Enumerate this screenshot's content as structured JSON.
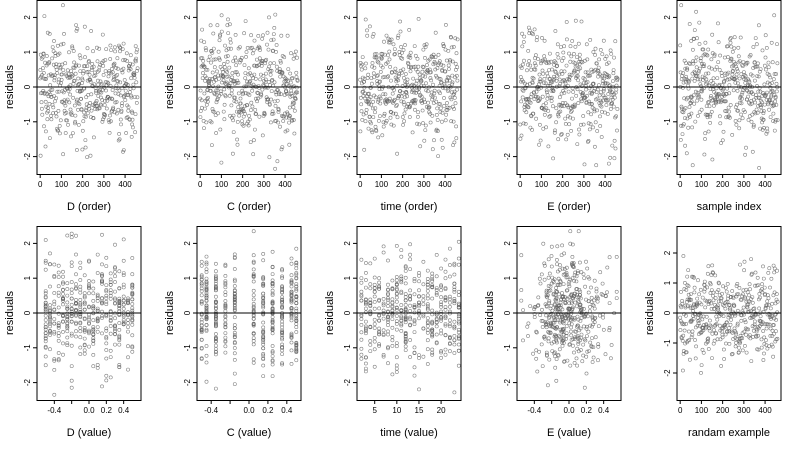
{
  "chart_data": [
    {
      "type": "scatter",
      "xlabel": "D (order)",
      "ylabel": "residuals",
      "xlim": [
        -15,
        475
      ],
      "ylim": [
        -2.5,
        2.5
      ],
      "xticks": [
        0,
        100,
        200,
        300,
        400
      ],
      "yticks": [
        -2,
        -1,
        0,
        1,
        2
      ],
      "reference_line_y": 0,
      "x_kind": "index",
      "n_points": 460,
      "points": []
    },
    {
      "type": "scatter",
      "xlabel": "C (order)",
      "ylabel": "residuals",
      "xlim": [
        -15,
        475
      ],
      "ylim": [
        -2.5,
        2.5
      ],
      "xticks": [
        0,
        100,
        200,
        300,
        400
      ],
      "yticks": [
        -2,
        -1,
        0,
        1,
        2
      ],
      "reference_line_y": 0,
      "x_kind": "index",
      "n_points": 460,
      "points": []
    },
    {
      "type": "scatter",
      "xlabel": "time (order)",
      "ylabel": "residuals",
      "xlim": [
        -15,
        475
      ],
      "ylim": [
        -2.5,
        2.5
      ],
      "xticks": [
        0,
        100,
        200,
        300,
        400
      ],
      "yticks": [
        -2,
        -1,
        0,
        1,
        2
      ],
      "reference_line_y": 0,
      "x_kind": "index",
      "n_points": 460,
      "points": []
    },
    {
      "type": "scatter",
      "xlabel": "E (order)",
      "ylabel": "residuals",
      "xlim": [
        -15,
        475
      ],
      "ylim": [
        -2.5,
        2.5
      ],
      "xticks": [
        0,
        100,
        200,
        300,
        400
      ],
      "yticks": [
        -2,
        -1,
        0,
        1,
        2
      ],
      "reference_line_y": 0,
      "x_kind": "index",
      "n_points": 460,
      "points": []
    },
    {
      "type": "scatter",
      "xlabel": "sample index",
      "ylabel": "residuals",
      "xlim": [
        -15,
        475
      ],
      "ylim": [
        -2.5,
        2.5
      ],
      "xticks": [
        0,
        100,
        200,
        300,
        400
      ],
      "yticks": [
        -2,
        -1,
        0,
        1,
        2
      ],
      "reference_line_y": 0,
      "x_kind": "index",
      "n_points": 460,
      "points": []
    },
    {
      "type": "scatter",
      "xlabel": "D (value)",
      "ylabel": "residuals",
      "xlim": [
        -0.6,
        0.6
      ],
      "ylim": [
        -2.5,
        2.5
      ],
      "xticks": [
        -0.4,
        -0.2,
        0,
        0.2,
        0.4
      ],
      "xtick_labels": [
        "-0.4",
        "",
        "0.0",
        "0.2",
        "0.4"
      ],
      "yticks": [
        -2,
        -1,
        0,
        1,
        2
      ],
      "reference_line_y": 0,
      "x_kind": "value",
      "x_levels": [
        -0.5,
        -0.45,
        -0.4,
        -0.35,
        -0.3,
        -0.25,
        -0.2,
        -0.15,
        -0.1,
        -0.05,
        0.0,
        0.05,
        0.1,
        0.15,
        0.2,
        0.25,
        0.3,
        0.35,
        0.4,
        0.45,
        0.5
      ],
      "n_points": 460,
      "points": []
    },
    {
      "type": "scatter",
      "xlabel": "C (value)",
      "ylabel": "residuals",
      "xlim": [
        -0.55,
        0.55
      ],
      "ylim": [
        -2.5,
        2.5
      ],
      "xticks": [
        -0.4,
        -0.2,
        0,
        0.2,
        0.4
      ],
      "xtick_labels": [
        "-0.4",
        "",
        "0.0",
        "0.2",
        "0.4"
      ],
      "yticks": [
        -2,
        -1,
        0,
        1,
        2
      ],
      "reference_line_y": 0,
      "x_kind": "value",
      "x_levels": [
        -0.5,
        -0.45,
        -0.35,
        -0.25,
        -0.15,
        0.05,
        0.15,
        0.25,
        0.35,
        0.45,
        0.5
      ],
      "n_points": 460,
      "points": []
    },
    {
      "type": "scatter",
      "xlabel": "time (value)",
      "ylabel": "residuals",
      "xlim": [
        1,
        24.5
      ],
      "ylim": [
        -2.5,
        2.5
      ],
      "xticks": [
        5,
        10,
        15,
        20
      ],
      "yticks": [
        -2,
        -1,
        0,
        1,
        2
      ],
      "reference_line_y": 0,
      "x_kind": "value",
      "x_levels": [
        2,
        3,
        4,
        5,
        6,
        7,
        8,
        9,
        10,
        11,
        12,
        13,
        14,
        15,
        16,
        17,
        18,
        19,
        20,
        21,
        22,
        23,
        24
      ],
      "n_points": 460,
      "points": []
    },
    {
      "type": "scatter",
      "xlabel": "E (value)",
      "ylabel": "residuals",
      "xlim": [
        -0.6,
        0.6
      ],
      "ylim": [
        -2.5,
        2.5
      ],
      "xticks": [
        -0.4,
        -0.2,
        0,
        0.2,
        0.4
      ],
      "xtick_labels": [
        "-0.4",
        "",
        "0.0",
        "0.2",
        "0.4"
      ],
      "yticks": [
        -2,
        -1,
        0,
        1,
        2
      ],
      "reference_line_y": 0,
      "x_kind": "continuous",
      "n_points": 460,
      "points": []
    },
    {
      "type": "scatter",
      "xlabel": "randam example",
      "ylabel": "residuals",
      "xlim": [
        -15,
        475
      ],
      "ylim": [
        -2.9,
        2.9
      ],
      "xticks": [
        0,
        100,
        200,
        300,
        400
      ],
      "yticks": [
        -2,
        -1,
        0,
        1,
        2
      ],
      "reference_line_y": 0,
      "x_kind": "index",
      "n_points": 460,
      "points": []
    }
  ],
  "style": {
    "marker_color": "#606060",
    "marker_opacity": 0.8,
    "axis_color": "#000000"
  }
}
